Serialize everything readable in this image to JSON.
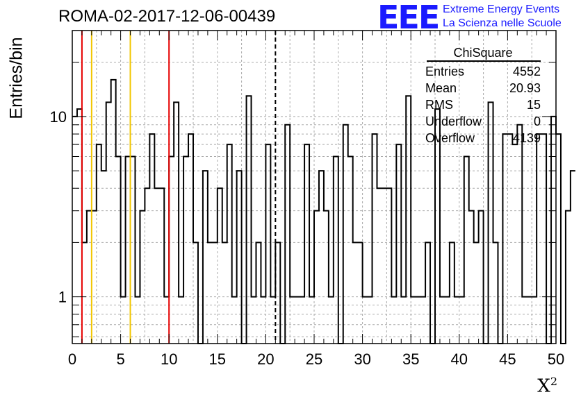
{
  "header": {
    "title": "ROMA-02-2017-12-06-00439",
    "logo_mark": "EEE",
    "logo_line1": "Extreme Energy Events",
    "logo_line2": "La Scienza nelle Scuole"
  },
  "stats": {
    "name": "ChiSquare",
    "rows": [
      {
        "label": "Entries",
        "value": "4552"
      },
      {
        "label": "Mean",
        "value": "20.93"
      },
      {
        "label": "RMS",
        "value": "15"
      },
      {
        "label": "Underflow",
        "value": "0"
      },
      {
        "label": "Overflow",
        "value": "4139"
      }
    ]
  },
  "chart_data": {
    "type": "histogram",
    "title": "ROMA-02-2017-12-06-00439",
    "xlabel": "X",
    "xlabel_sup": "2",
    "ylabel": "Entries/bin",
    "xlim": [
      0,
      50
    ],
    "ylim": [
      0.55,
      30
    ],
    "yscale": "log",
    "grid": true,
    "bin_width": 0.5,
    "x_ticks": [
      "0",
      "5",
      "10",
      "15",
      "20",
      "25",
      "30",
      "35",
      "40",
      "45",
      "50"
    ],
    "y_ticks": [
      {
        "value": 1,
        "label": "1"
      },
      {
        "value": 10,
        "label": "10"
      }
    ],
    "counts": [
      10,
      11,
      2,
      3,
      3,
      7,
      5,
      12,
      16,
      6,
      1,
      6,
      6,
      1,
      3,
      4,
      8,
      4,
      4,
      1,
      6,
      12,
      1,
      6,
      8,
      2,
      0,
      5,
      2,
      2,
      4,
      2,
      7,
      1,
      5,
      0,
      13,
      1,
      2,
      1,
      7,
      1,
      2,
      0,
      9,
      1,
      1,
      1,
      7,
      1,
      3,
      5,
      3,
      1,
      6,
      0,
      9,
      6,
      2,
      2,
      1,
      1,
      8,
      4,
      4,
      4,
      1,
      7,
      1,
      13,
      1,
      1,
      1,
      2,
      0,
      11,
      1,
      1,
      2,
      1,
      1,
      6,
      3,
      2,
      3,
      0,
      12,
      2,
      0,
      8,
      8,
      7,
      9,
      1,
      1,
      1,
      8,
      8,
      0,
      10,
      8,
      0,
      3,
      5
    ],
    "lines": [
      {
        "x": 1,
        "color": "#e60000",
        "style": "solid"
      },
      {
        "x": 2,
        "color": "#f2c600",
        "style": "solid"
      },
      {
        "x": 6,
        "color": "#f2c600",
        "style": "solid"
      },
      {
        "x": 10,
        "color": "#e60000",
        "style": "solid"
      },
      {
        "x": 21,
        "color": "#000000",
        "style": "dashed"
      }
    ]
  }
}
